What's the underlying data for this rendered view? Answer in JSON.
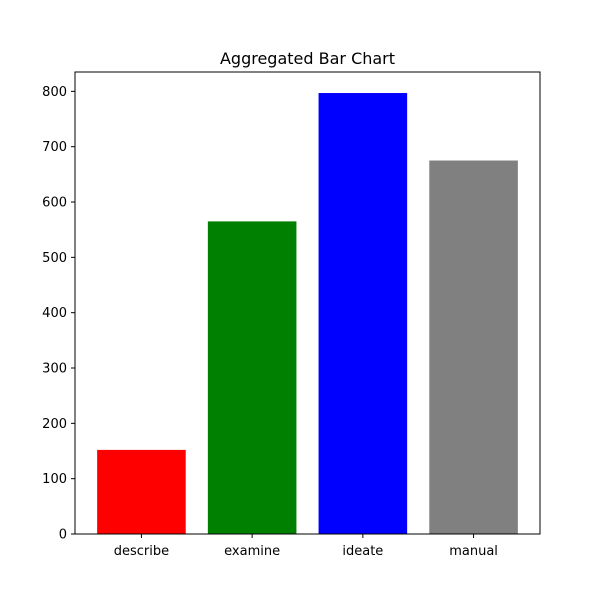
{
  "chart_data": {
    "type": "bar",
    "title": "Aggregated Bar Chart",
    "xlabel": "",
    "ylabel": "",
    "categories": [
      "describe",
      "examine",
      "ideate",
      "manual"
    ],
    "values": [
      152,
      565,
      797,
      675
    ],
    "colors": [
      "#ff0000",
      "#008000",
      "#0000ff",
      "#808080"
    ],
    "ylim": [
      0,
      835
    ],
    "yticks": [
      0,
      100,
      200,
      300,
      400,
      500,
      600,
      700,
      800
    ],
    "grid": false,
    "legend": "none"
  }
}
